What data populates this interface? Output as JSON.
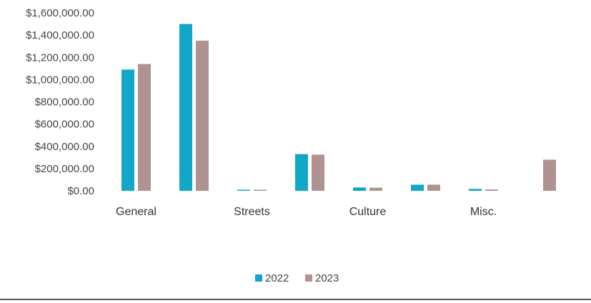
{
  "chart_data": {
    "type": "bar",
    "categories": [
      "General",
      "",
      "Streets",
      "",
      "Culture",
      "",
      "Misc.",
      ""
    ],
    "series": [
      {
        "name": "2022",
        "color": "#12A6C8",
        "values": [
          1090000,
          1500000,
          3000,
          330000,
          30000,
          55000,
          17000,
          0
        ]
      },
      {
        "name": "2023",
        "color": "#B09290",
        "values": [
          1140000,
          1350000,
          6000,
          325000,
          28000,
          55000,
          12000,
          280000
        ]
      }
    ],
    "ylim": [
      0,
      1600000
    ],
    "yticks": [
      "$0.00",
      "$200,000.00",
      "$400,000.00",
      "$600,000.00",
      "$800,000.00",
      "$1,000,000.00",
      "$1,200,000.00",
      "$1,400,000.00",
      "$1,600,000.00"
    ],
    "title": "",
    "xlabel": "",
    "ylabel": "",
    "legend": {
      "position": "bottom",
      "items": [
        "2022",
        "2023"
      ]
    },
    "grid": false
  }
}
